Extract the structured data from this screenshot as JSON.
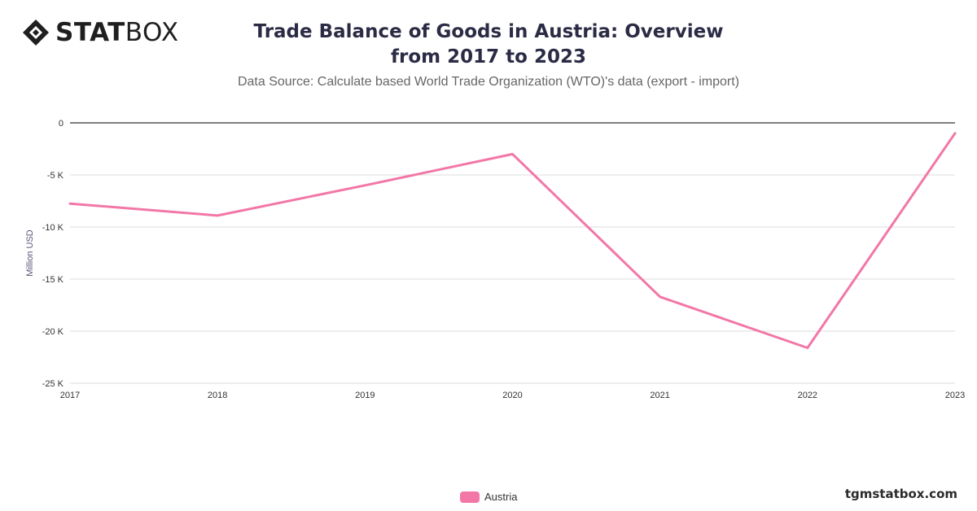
{
  "brand": {
    "logo_bold": "STAT",
    "logo_light": "BOX",
    "website": "tgmstatbox.com"
  },
  "chart_data": {
    "type": "line",
    "title": "Trade Balance of Goods in Austria: Overview from 2017 to 2023",
    "subtitle": "Data Source: Calculate based World Trade Organization (WTO)'s data (export - import)",
    "xlabel": "",
    "ylabel": "Million USD",
    "x": [
      "2017",
      "2018",
      "2019",
      "2020",
      "2021",
      "2022",
      "2023"
    ],
    "series": [
      {
        "name": "Austria",
        "color": "#f277a7",
        "values": [
          -7750,
          -8900,
          -6000,
          -3000,
          -16700,
          -21600,
          -1000
        ]
      }
    ],
    "ylim": [
      -25000,
      0
    ],
    "yticks": [
      0,
      -5000,
      -10000,
      -15000,
      -20000,
      -25000
    ],
    "ytick_labels": [
      "0",
      "-5 K",
      "-10 K",
      "-15 K",
      "-20 K",
      "-25 K"
    ],
    "grid": true,
    "legend_position": "bottom-center"
  }
}
